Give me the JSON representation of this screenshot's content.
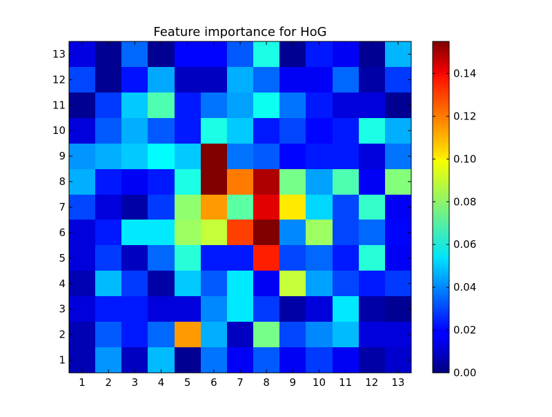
{
  "chart_data": {
    "type": "heatmap",
    "title": "Feature importance for HoG",
    "xlabel": "",
    "ylabel": "",
    "x_categories": [
      "1",
      "2",
      "3",
      "4",
      "5",
      "6",
      "7",
      "8",
      "9",
      "10",
      "11",
      "12",
      "13"
    ],
    "y_categories": [
      "1",
      "2",
      "3",
      "4",
      "5",
      "6",
      "7",
      "8",
      "9",
      "10",
      "11",
      "12",
      "13"
    ],
    "colormap": "jet",
    "color_range": [
      0.0,
      0.155
    ],
    "colorbar_ticks": [
      "0.00",
      "0.02",
      "0.04",
      "0.06",
      "0.08",
      "0.10",
      "0.12",
      "0.14"
    ],
    "colorbar_tick_values": [
      0.0,
      0.02,
      0.04,
      0.06,
      0.08,
      0.1,
      0.12,
      0.14
    ],
    "rows_top_to_bottom": [
      {
        "y": "13",
        "values": [
          0.015,
          0.003,
          0.035,
          0.003,
          0.02,
          0.02,
          0.033,
          0.062,
          0.003,
          0.023,
          0.018,
          0.003,
          0.047
        ]
      },
      {
        "y": "12",
        "values": [
          0.03,
          0.003,
          0.022,
          0.045,
          0.01,
          0.01,
          0.046,
          0.035,
          0.018,
          0.018,
          0.035,
          0.006,
          0.028
        ]
      },
      {
        "y": "11",
        "values": [
          0.003,
          0.028,
          0.05,
          0.07,
          0.023,
          0.037,
          0.044,
          0.06,
          0.037,
          0.023,
          0.014,
          0.014,
          0.003
        ]
      },
      {
        "y": "10",
        "values": [
          0.014,
          0.033,
          0.046,
          0.033,
          0.023,
          0.062,
          0.05,
          0.023,
          0.03,
          0.02,
          0.023,
          0.062,
          0.046
        ]
      },
      {
        "y": "9",
        "values": [
          0.042,
          0.046,
          0.05,
          0.058,
          0.05,
          0.155,
          0.037,
          0.033,
          0.02,
          0.023,
          0.023,
          0.014,
          0.037
        ]
      },
      {
        "y": "8",
        "values": [
          0.046,
          0.023,
          0.018,
          0.023,
          0.062,
          0.155,
          0.117,
          0.148,
          0.076,
          0.044,
          0.07,
          0.018,
          0.078
        ]
      },
      {
        "y": "7",
        "values": [
          0.03,
          0.014,
          0.006,
          0.028,
          0.08,
          0.112,
          0.072,
          0.14,
          0.1,
          0.052,
          0.03,
          0.066,
          0.018
        ]
      },
      {
        "y": "6",
        "values": [
          0.014,
          0.023,
          0.055,
          0.055,
          0.082,
          0.088,
          0.126,
          0.155,
          0.04,
          0.082,
          0.03,
          0.035,
          0.02
        ]
      },
      {
        "y": "5",
        "values": [
          0.014,
          0.028,
          0.01,
          0.035,
          0.064,
          0.023,
          0.023,
          0.131,
          0.03,
          0.035,
          0.023,
          0.064,
          0.018
        ]
      },
      {
        "y": "4",
        "values": [
          0.008,
          0.048,
          0.028,
          0.006,
          0.05,
          0.033,
          0.055,
          0.018,
          0.088,
          0.044,
          0.03,
          0.023,
          0.028
        ]
      },
      {
        "y": "3",
        "values": [
          0.014,
          0.023,
          0.023,
          0.014,
          0.014,
          0.04,
          0.055,
          0.028,
          0.006,
          0.014,
          0.055,
          0.006,
          0.003
        ]
      },
      {
        "y": "2",
        "values": [
          0.008,
          0.033,
          0.023,
          0.035,
          0.112,
          0.046,
          0.01,
          0.076,
          0.03,
          0.04,
          0.048,
          0.014,
          0.014
        ]
      },
      {
        "y": "1",
        "values": [
          0.008,
          0.042,
          0.01,
          0.048,
          0.003,
          0.037,
          0.018,
          0.033,
          0.018,
          0.028,
          0.018,
          0.006,
          0.012
        ]
      }
    ]
  }
}
